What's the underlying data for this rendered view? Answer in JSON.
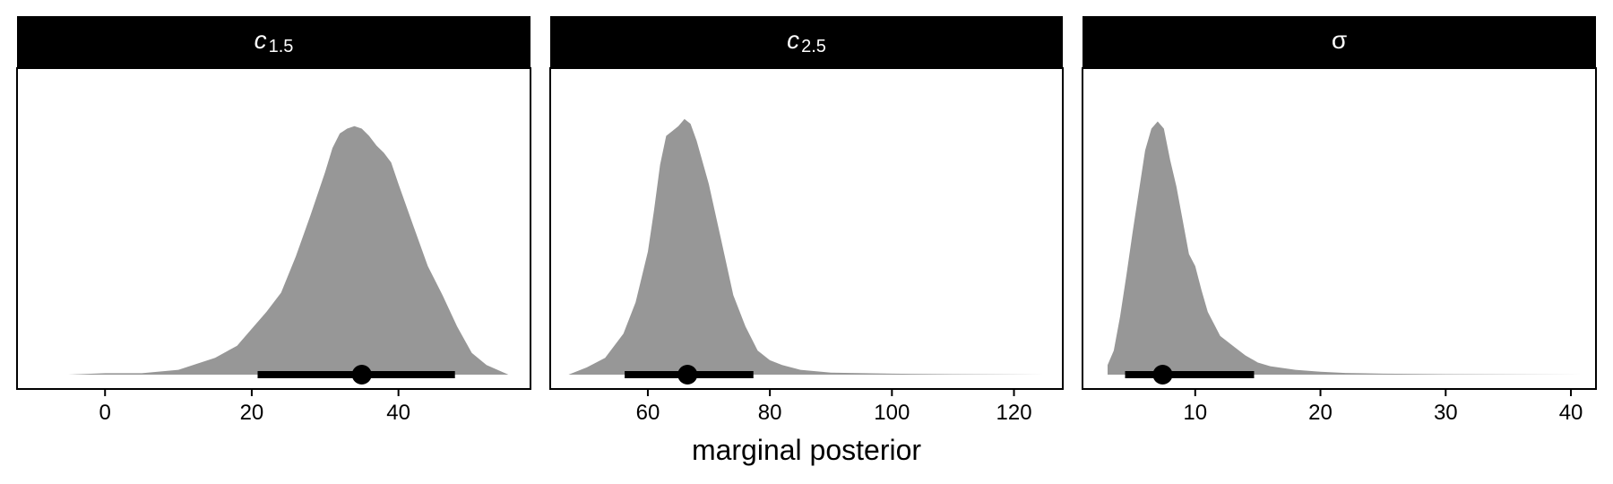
{
  "figure": {
    "x_axis_title": "marginal posterior"
  },
  "colors": {
    "strip": "#000000",
    "density_fill": "#979797",
    "interval": "#000000",
    "panel_border": "#000000"
  },
  "chart_data": [
    {
      "type": "area",
      "panel_label_main": "c",
      "panel_label_sub": "1.5",
      "xlim": [
        -12,
        58
      ],
      "xticks": [
        0,
        20,
        40
      ],
      "ylim": [
        0,
        1.1
      ],
      "density": {
        "x": [
          -9,
          -5,
          0,
          5,
          10,
          12,
          15,
          18,
          20,
          22,
          24,
          26,
          28,
          30,
          31,
          32,
          33,
          34,
          35,
          36,
          37,
          38,
          39,
          40,
          42,
          44,
          46,
          48,
          50,
          52,
          55
        ],
        "y": [
          0.0,
          0.0,
          0.006,
          0.006,
          0.02,
          0.04,
          0.07,
          0.12,
          0.19,
          0.26,
          0.34,
          0.49,
          0.66,
          0.84,
          0.94,
          1.0,
          1.02,
          1.03,
          1.02,
          0.99,
          0.95,
          0.92,
          0.88,
          0.79,
          0.62,
          0.45,
          0.33,
          0.2,
          0.09,
          0.04,
          0.0
        ]
      },
      "interval": [
        20.8,
        47.7
      ],
      "point": 35
    },
    {
      "type": "area",
      "panel_label_main": "c",
      "panel_label_sub": "2.5",
      "xlim": [
        44,
        128
      ],
      "xticks": [
        60,
        80,
        100,
        120
      ],
      "ylim": [
        0,
        1.1
      ],
      "density": {
        "x": [
          47,
          50,
          53,
          56,
          58,
          60,
          61,
          62,
          63,
          64,
          65,
          66,
          67,
          68,
          70,
          72,
          74,
          76,
          78,
          80,
          82,
          85,
          90,
          100,
          110,
          125
        ],
        "y": [
          0.0,
          0.03,
          0.07,
          0.17,
          0.3,
          0.51,
          0.68,
          0.87,
          0.99,
          1.01,
          1.03,
          1.06,
          1.04,
          0.97,
          0.79,
          0.56,
          0.33,
          0.2,
          0.1,
          0.06,
          0.04,
          0.02,
          0.008,
          0.004,
          0.002,
          0.0
        ]
      },
      "interval": [
        56.2,
        77.3
      ],
      "point": 66.5
    },
    {
      "type": "area",
      "panel_label_main": "σ",
      "panel_label_sub": "",
      "xlim": [
        1,
        42
      ],
      "xticks": [
        10,
        20,
        30,
        40
      ],
      "ylim": [
        0,
        1.1
      ],
      "density": {
        "x": [
          3,
          3.5,
          4,
          4.5,
          5,
          5.5,
          6,
          6.5,
          7,
          7.5,
          8,
          8.5,
          9,
          9.5,
          10,
          10.5,
          11,
          12,
          13,
          14,
          15,
          16,
          18,
          20,
          22,
          25,
          30,
          41
        ],
        "y": [
          0.04,
          0.1,
          0.24,
          0.41,
          0.59,
          0.76,
          0.93,
          1.02,
          1.05,
          1.02,
          0.89,
          0.78,
          0.64,
          0.5,
          0.45,
          0.35,
          0.26,
          0.16,
          0.12,
          0.08,
          0.05,
          0.035,
          0.02,
          0.012,
          0.007,
          0.004,
          0.002,
          0.0
        ]
      },
      "interval": [
        4.4,
        14.7
      ],
      "point": 7.4
    }
  ]
}
